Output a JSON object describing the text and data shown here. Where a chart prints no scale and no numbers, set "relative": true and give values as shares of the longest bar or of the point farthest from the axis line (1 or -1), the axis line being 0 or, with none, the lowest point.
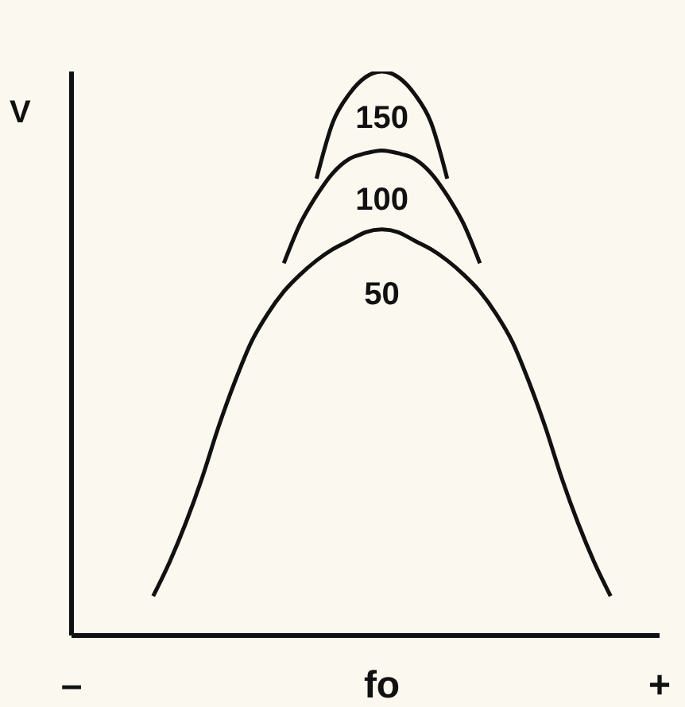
{
  "chart_data": {
    "type": "line",
    "relative": true,
    "ylabel": "V",
    "line_style": "solid",
    "marker": "none",
    "grid": false,
    "categories": [
      "–",
      null,
      null,
      null,
      null,
      null,
      null,
      null,
      null,
      null,
      null,
      null,
      null,
      null,
      null,
      null,
      null,
      null,
      null,
      "fo",
      null,
      null,
      null,
      null,
      null,
      null,
      null,
      null,
      null,
      null,
      null,
      null,
      null,
      null,
      null,
      null,
      "+"
    ],
    "series": [
      {
        "name": "150",
        "color": "#111111",
        "values": [
          null,
          null,
          null,
          null,
          null,
          null,
          null,
          null,
          null,
          null,
          null,
          null,
          null,
          null,
          null,
          0.81,
          0.91,
          0.96,
          0.99,
          1.0,
          0.99,
          0.96,
          0.91,
          0.81,
          null,
          null,
          null,
          null,
          null,
          null,
          null,
          null,
          null,
          null,
          null,
          null,
          null
        ]
      },
      {
        "name": "100",
        "color": "#111111",
        "values": [
          null,
          null,
          null,
          null,
          null,
          null,
          null,
          null,
          null,
          null,
          null,
          null,
          null,
          0.66,
          0.73,
          0.78,
          0.82,
          0.845,
          0.855,
          0.86,
          0.855,
          0.845,
          0.82,
          0.78,
          0.73,
          0.66,
          null,
          null,
          null,
          null,
          null,
          null,
          null,
          null,
          null,
          null,
          null
        ]
      },
      {
        "name": "50",
        "color": "#111111",
        "values": [
          null,
          null,
          null,
          null,
          null,
          0.07,
          0.13,
          0.2,
          0.28,
          0.37,
          0.45,
          0.52,
          0.57,
          0.61,
          0.64,
          0.665,
          0.685,
          0.7,
          0.715,
          0.72,
          0.715,
          0.7,
          0.685,
          0.665,
          0.64,
          0.61,
          0.57,
          0.52,
          0.45,
          0.37,
          0.28,
          0.2,
          0.13,
          0.07,
          null,
          null,
          null
        ]
      }
    ]
  }
}
